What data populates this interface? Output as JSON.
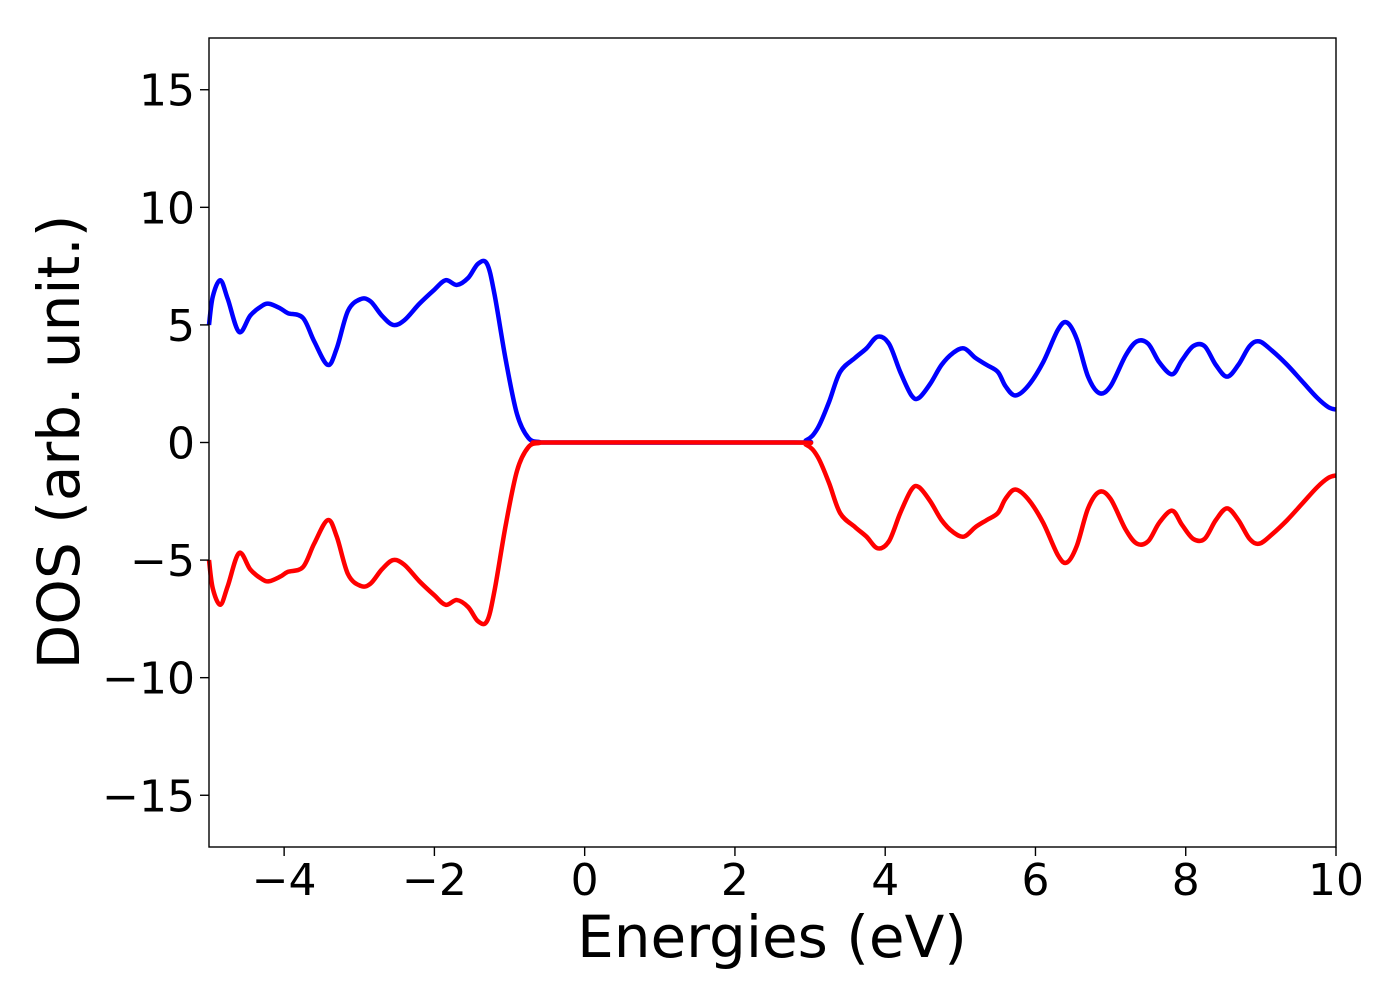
{
  "chart_data": {
    "type": "line",
    "title": "",
    "xlabel": "Energies (eV)",
    "ylabel": "DOS (arb. unit.)",
    "xlim": [
      -5,
      10
    ],
    "ylim": [
      -17.2,
      17.2
    ],
    "xticks": [
      -4,
      -2,
      0,
      2,
      4,
      6,
      8,
      10
    ],
    "yticks": [
      -15,
      -10,
      -5,
      0,
      5,
      10,
      15
    ],
    "grid": false,
    "legend": "none",
    "series": [
      {
        "color": "#0000ff",
        "points": [
          [
            -5.0,
            5.0
          ],
          [
            -4.95,
            6.2
          ],
          [
            -4.85,
            6.9
          ],
          [
            -4.75,
            6.1
          ],
          [
            -4.6,
            4.7
          ],
          [
            -4.45,
            5.4
          ],
          [
            -4.3,
            5.8
          ],
          [
            -4.2,
            5.9
          ],
          [
            -4.05,
            5.7
          ],
          [
            -3.95,
            5.5
          ],
          [
            -3.75,
            5.3
          ],
          [
            -3.6,
            4.3
          ],
          [
            -3.42,
            3.3
          ],
          [
            -3.3,
            4.0
          ],
          [
            -3.15,
            5.6
          ],
          [
            -2.98,
            6.1
          ],
          [
            -2.85,
            6.0
          ],
          [
            -2.7,
            5.4
          ],
          [
            -2.55,
            5.0
          ],
          [
            -2.4,
            5.2
          ],
          [
            -2.2,
            5.9
          ],
          [
            -2.0,
            6.5
          ],
          [
            -1.85,
            6.9
          ],
          [
            -1.7,
            6.7
          ],
          [
            -1.55,
            7.0
          ],
          [
            -1.42,
            7.6
          ],
          [
            -1.3,
            7.6
          ],
          [
            -1.2,
            6.3
          ],
          [
            -1.05,
            3.5
          ],
          [
            -0.9,
            1.2
          ],
          [
            -0.75,
            0.2
          ],
          [
            -0.6,
            0.02
          ],
          [
            -0.4,
            0.0
          ],
          [
            2.7,
            0.0
          ],
          [
            2.95,
            0.1
          ],
          [
            3.1,
            0.6
          ],
          [
            3.25,
            1.7
          ],
          [
            3.4,
            3.0
          ],
          [
            3.6,
            3.6
          ],
          [
            3.75,
            4.0
          ],
          [
            3.9,
            4.5
          ],
          [
            4.05,
            4.2
          ],
          [
            4.2,
            3.0
          ],
          [
            4.35,
            2.0
          ],
          [
            4.45,
            1.9
          ],
          [
            4.6,
            2.5
          ],
          [
            4.75,
            3.3
          ],
          [
            4.9,
            3.8
          ],
          [
            5.05,
            4.0
          ],
          [
            5.2,
            3.6
          ],
          [
            5.35,
            3.3
          ],
          [
            5.5,
            3.0
          ],
          [
            5.6,
            2.4
          ],
          [
            5.73,
            2.0
          ],
          [
            5.9,
            2.4
          ],
          [
            6.1,
            3.4
          ],
          [
            6.3,
            4.8
          ],
          [
            6.42,
            5.1
          ],
          [
            6.55,
            4.4
          ],
          [
            6.7,
            2.8
          ],
          [
            6.85,
            2.1
          ],
          [
            7.0,
            2.4
          ],
          [
            7.2,
            3.7
          ],
          [
            7.35,
            4.3
          ],
          [
            7.5,
            4.2
          ],
          [
            7.65,
            3.4
          ],
          [
            7.82,
            2.9
          ],
          [
            7.95,
            3.5
          ],
          [
            8.1,
            4.1
          ],
          [
            8.25,
            4.1
          ],
          [
            8.4,
            3.3
          ],
          [
            8.55,
            2.8
          ],
          [
            8.7,
            3.3
          ],
          [
            8.85,
            4.1
          ],
          [
            8.98,
            4.3
          ],
          [
            9.15,
            3.9
          ],
          [
            9.35,
            3.3
          ],
          [
            9.55,
            2.6
          ],
          [
            9.75,
            1.9
          ],
          [
            9.9,
            1.5
          ],
          [
            10.0,
            1.4
          ]
        ]
      },
      {
        "color": "#ff0000",
        "points": [
          [
            -5.0,
            -5.0
          ],
          [
            -4.95,
            -6.2
          ],
          [
            -4.85,
            -6.9
          ],
          [
            -4.75,
            -6.1
          ],
          [
            -4.6,
            -4.7
          ],
          [
            -4.45,
            -5.4
          ],
          [
            -4.3,
            -5.8
          ],
          [
            -4.2,
            -5.9
          ],
          [
            -4.05,
            -5.7
          ],
          [
            -3.95,
            -5.5
          ],
          [
            -3.75,
            -5.3
          ],
          [
            -3.6,
            -4.3
          ],
          [
            -3.42,
            -3.3
          ],
          [
            -3.3,
            -4.0
          ],
          [
            -3.15,
            -5.6
          ],
          [
            -2.98,
            -6.1
          ],
          [
            -2.85,
            -6.0
          ],
          [
            -2.7,
            -5.4
          ],
          [
            -2.55,
            -5.0
          ],
          [
            -2.4,
            -5.2
          ],
          [
            -2.2,
            -5.9
          ],
          [
            -2.0,
            -6.5
          ],
          [
            -1.85,
            -6.9
          ],
          [
            -1.7,
            -6.7
          ],
          [
            -1.55,
            -7.0
          ],
          [
            -1.42,
            -7.6
          ],
          [
            -1.3,
            -7.6
          ],
          [
            -1.2,
            -6.3
          ],
          [
            -1.05,
            -3.5
          ],
          [
            -0.9,
            -1.2
          ],
          [
            -0.75,
            -0.2
          ],
          [
            -0.6,
            -0.02
          ],
          [
            -0.4,
            0.0
          ],
          [
            2.7,
            0.0
          ],
          [
            2.95,
            -0.1
          ],
          [
            3.1,
            -0.6
          ],
          [
            3.25,
            -1.7
          ],
          [
            3.4,
            -3.0
          ],
          [
            3.6,
            -3.6
          ],
          [
            3.75,
            -4.0
          ],
          [
            3.9,
            -4.5
          ],
          [
            4.05,
            -4.2
          ],
          [
            4.2,
            -3.0
          ],
          [
            4.35,
            -2.0
          ],
          [
            4.45,
            -1.9
          ],
          [
            4.6,
            -2.5
          ],
          [
            4.75,
            -3.3
          ],
          [
            4.9,
            -3.8
          ],
          [
            5.05,
            -4.0
          ],
          [
            5.2,
            -3.6
          ],
          [
            5.35,
            -3.3
          ],
          [
            5.5,
            -3.0
          ],
          [
            5.6,
            -2.4
          ],
          [
            5.73,
            -2.0
          ],
          [
            5.9,
            -2.4
          ],
          [
            6.1,
            -3.4
          ],
          [
            6.3,
            -4.8
          ],
          [
            6.42,
            -5.1
          ],
          [
            6.55,
            -4.4
          ],
          [
            6.7,
            -2.8
          ],
          [
            6.85,
            -2.1
          ],
          [
            7.0,
            -2.4
          ],
          [
            7.2,
            -3.7
          ],
          [
            7.35,
            -4.3
          ],
          [
            7.5,
            -4.2
          ],
          [
            7.65,
            -3.4
          ],
          [
            7.82,
            -2.9
          ],
          [
            7.95,
            -3.5
          ],
          [
            8.1,
            -4.1
          ],
          [
            8.25,
            -4.1
          ],
          [
            8.4,
            -3.3
          ],
          [
            8.55,
            -2.8
          ],
          [
            8.7,
            -3.3
          ],
          [
            8.85,
            -4.1
          ],
          [
            8.98,
            -4.3
          ],
          [
            9.15,
            -3.9
          ],
          [
            9.35,
            -3.3
          ],
          [
            9.55,
            -2.6
          ],
          [
            9.75,
            -1.9
          ],
          [
            9.9,
            -1.5
          ],
          [
            10.0,
            -1.4
          ]
        ]
      }
    ]
  }
}
